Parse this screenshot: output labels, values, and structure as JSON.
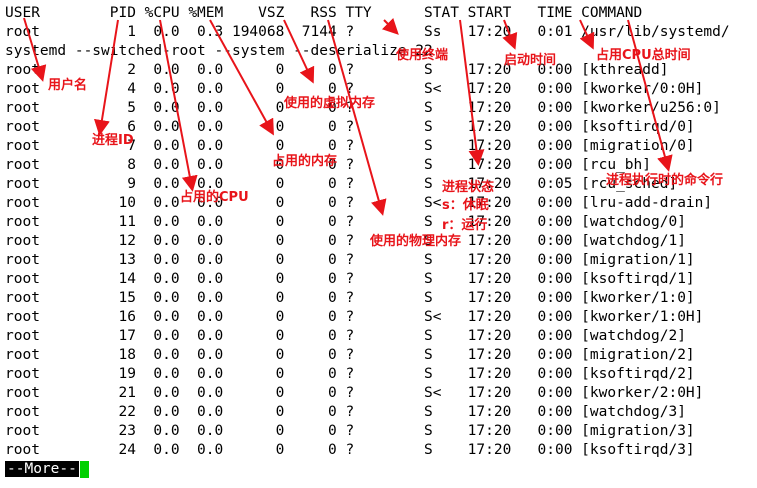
{
  "terminal": {
    "header": "USER        PID %CPU %MEM    VSZ   RSS TTY      STAT START   TIME COMMAND",
    "wrapped_lines": [
      "root          1  0.0  0.3 194068  7144 ?        Ss   17:20   0:01 /usr/lib/systemd/",
      "systemd --switched-root --system --deserialize 22"
    ],
    "rows": [
      "root          2  0.0  0.0      0     0 ?        S    17:20   0:00 [kthreadd]",
      "root          4  0.0  0.0      0     0 ?        S<   17:20   0:00 [kworker/0:0H]",
      "root          5  0.0  0.0      0     0 ?        S    17:20   0:00 [kworker/u256:0]",
      "root          6  0.0  0.0      0     0 ?        S    17:20   0:00 [ksoftirqd/0]",
      "root          7  0.0  0.0      0     0 ?        S    17:20   0:00 [migration/0]",
      "root          8  0.0  0.0      0     0 ?        S    17:20   0:00 [rcu_bh]",
      "root          9  0.0  0.0      0     0 ?        S    17:20   0:05 [rcu_sched]",
      "root         10  0.0  0.0      0     0 ?        S<   17:20   0:00 [lru-add-drain]",
      "root         11  0.0  0.0      0     0 ?        S    17:20   0:00 [watchdog/0]",
      "root         12  0.0  0.0      0     0 ?        S    17:20   0:00 [watchdog/1]",
      "root         13  0.0  0.0      0     0 ?        S    17:20   0:00 [migration/1]",
      "root         14  0.0  0.0      0     0 ?        S    17:20   0:00 [ksoftirqd/1]",
      "root         15  0.0  0.0      0     0 ?        S    17:20   0:00 [kworker/1:0]",
      "root         16  0.0  0.0      0     0 ?        S<   17:20   0:00 [kworker/1:0H]",
      "root         17  0.0  0.0      0     0 ?        S    17:20   0:00 [watchdog/2]",
      "root         18  0.0  0.0      0     0 ?        S    17:20   0:00 [migration/2]",
      "root         19  0.0  0.0      0     0 ?        S    17:20   0:00 [ksoftirqd/2]",
      "root         21  0.0  0.0      0     0 ?        S<   17:20   0:00 [kworker/2:0H]",
      "root         22  0.0  0.0      0     0 ?        S    17:20   0:00 [watchdog/3]",
      "root         23  0.0  0.0      0     0 ?        S    17:20   0:00 [migration/3]",
      "root         24  0.0  0.0      0     0 ?        S    17:20   0:00 [ksoftirqd/3]"
    ],
    "pager_prompt": "--More--"
  },
  "annotations": {
    "user": "用户名",
    "pid": "进程ID",
    "cpu": "占用的CPU",
    "mem": "占用的内存",
    "vsz": "使用的虚拟内存",
    "rss": "使用的物理内存",
    "tty": "使用终端",
    "stat": "进程状态",
    "stat_s": "s：休眠",
    "stat_r": "r：运行",
    "start": "启动时间",
    "time": "占用CPU总时间",
    "command": "进程执行时的命令行"
  },
  "colors": {
    "annotation": "#e8141a",
    "cursor": "#00d000"
  }
}
